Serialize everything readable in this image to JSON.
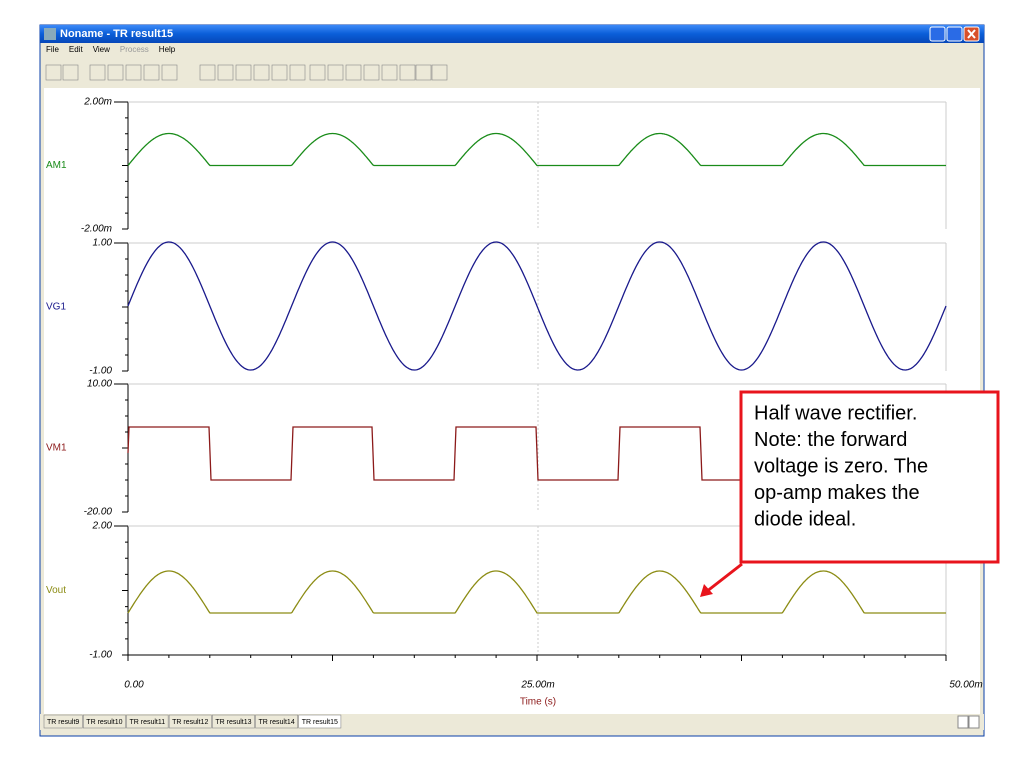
{
  "window": {
    "title": "Noname - TR result15"
  },
  "menu": [
    "File",
    "Edit",
    "View",
    "Process",
    "Help"
  ],
  "plots": [
    {
      "label": "AM1",
      "top": "2.00m",
      "bottom": "-2.00m"
    },
    {
      "label": "VG1",
      "top": "1.00",
      "bottom": "-1.00"
    },
    {
      "label": "VM1",
      "top": "10.00",
      "bottom": "-20.00"
    },
    {
      "label": "Vout",
      "top": "2.00",
      "bottom": "-1.00"
    }
  ],
  "x_axis": {
    "ticks": [
      "0.00",
      "25.00m",
      "50.00m"
    ],
    "label": "Time (s)"
  },
  "annotation": [
    "Half wave rectifier.",
    "Note:  the forward",
    "voltage is zero.  The",
    "op-amp makes the",
    "diode ideal."
  ],
  "tabs": [
    "TR result9",
    "TR result10",
    "TR result11",
    "TR result12",
    "TR result13",
    "TR result14",
    "TR result15"
  ]
}
